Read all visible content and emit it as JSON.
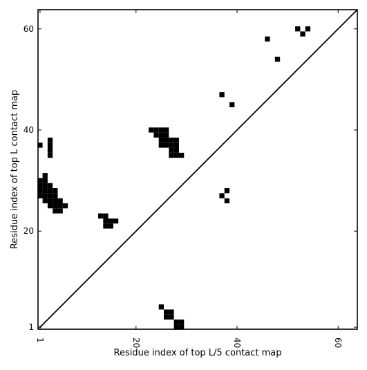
{
  "chart_data": {
    "type": "heatmap",
    "xlabel": "Residue index of top L/5 contact map",
    "ylabel": "Residue index of top L contact map",
    "xlim": [
      0.6,
      63.8
    ],
    "ylim": [
      0.6,
      63.8
    ],
    "x_ticks": [
      1,
      20,
      40,
      60
    ],
    "y_ticks": [
      1,
      20,
      40,
      60
    ],
    "x_tick_labels": [
      "1",
      "20",
      "40",
      "60"
    ],
    "y_tick_labels": [
      "1",
      "20",
      "40",
      "60"
    ],
    "x_tick_rotation": -90,
    "diagonal": true,
    "cell_color": "#000000",
    "cells": [
      [
        1,
        37
      ],
      [
        3,
        35
      ],
      [
        3,
        36
      ],
      [
        3,
        37
      ],
      [
        3,
        38
      ],
      [
        1,
        27
      ],
      [
        1,
        28
      ],
      [
        1,
        29
      ],
      [
        1,
        30
      ],
      [
        2,
        26
      ],
      [
        2,
        27
      ],
      [
        2,
        28
      ],
      [
        2,
        29
      ],
      [
        2,
        30
      ],
      [
        2,
        31
      ],
      [
        3,
        25
      ],
      [
        3,
        26
      ],
      [
        3,
        27
      ],
      [
        3,
        28
      ],
      [
        3,
        29
      ],
      [
        4,
        24
      ],
      [
        4,
        25
      ],
      [
        4,
        26
      ],
      [
        4,
        27
      ],
      [
        4,
        28
      ],
      [
        5,
        24
      ],
      [
        5,
        25
      ],
      [
        5,
        26
      ],
      [
        6,
        25
      ],
      [
        13,
        23
      ],
      [
        14,
        22
      ],
      [
        14,
        23
      ],
      [
        14,
        21
      ],
      [
        15,
        21
      ],
      [
        15,
        22
      ],
      [
        16,
        22
      ],
      [
        23,
        40
      ],
      [
        24,
        39
      ],
      [
        24,
        40
      ],
      [
        25,
        37
      ],
      [
        25,
        38
      ],
      [
        25,
        39
      ],
      [
        25,
        40
      ],
      [
        26,
        37
      ],
      [
        26,
        38
      ],
      [
        26,
        39
      ],
      [
        26,
        40
      ],
      [
        27,
        35
      ],
      [
        27,
        36
      ],
      [
        27,
        37
      ],
      [
        27,
        38
      ],
      [
        28,
        35
      ],
      [
        28,
        36
      ],
      [
        28,
        37
      ],
      [
        28,
        38
      ],
      [
        29,
        35
      ],
      [
        37,
        27
      ],
      [
        38,
        26
      ],
      [
        38,
        28
      ],
      [
        37,
        47
      ],
      [
        39,
        45
      ],
      [
        46,
        58
      ],
      [
        48,
        54
      ],
      [
        52,
        60
      ],
      [
        53,
        59
      ],
      [
        54,
        60
      ],
      [
        25,
        5
      ],
      [
        26,
        3
      ],
      [
        26,
        4
      ],
      [
        27,
        3
      ],
      [
        27,
        4
      ],
      [
        28,
        1
      ],
      [
        28,
        2
      ],
      [
        29,
        1
      ],
      [
        29,
        2
      ]
    ]
  }
}
